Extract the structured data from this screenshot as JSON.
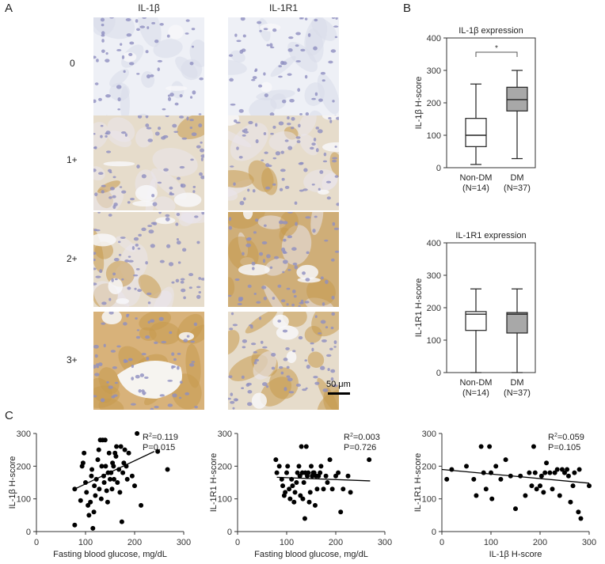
{
  "panels": {
    "a": "A",
    "b": "B",
    "c": "C"
  },
  "panel_a": {
    "col_headers": [
      "IL-1β",
      "IL-1R1"
    ],
    "row_labels": [
      "0",
      "1+",
      "2+",
      "3+"
    ],
    "scale_bar": "50 μm",
    "stain_colors": {
      "hematoxylin": "#8f8fc0",
      "dab": "#c79a4e",
      "background": "#eef0f6"
    }
  },
  "chart_data": [
    {
      "type": "box",
      "title": "IL-1β expression",
      "ylabel": "IL-1β H-score",
      "ylim": [
        0,
        400
      ],
      "yticks": [
        0,
        100,
        200,
        300,
        400
      ],
      "categories": [
        "Non-DM",
        "DM"
      ],
      "category_n": [
        "(N=14)",
        "(N=37)"
      ],
      "boxes": [
        {
          "min": 10,
          "q1": 65,
          "median": 100,
          "q3": 152,
          "max": 258,
          "fill": "#ffffff"
        },
        {
          "min": 28,
          "q1": 175,
          "median": 210,
          "q3": 248,
          "max": 300,
          "fill": "#a8a8a8"
        }
      ],
      "significance": "*"
    },
    {
      "type": "box",
      "title": "IL-1R1 expression",
      "ylabel": "IL-1R1 H-score",
      "ylim": [
        0,
        400
      ],
      "yticks": [
        0,
        100,
        200,
        300,
        400
      ],
      "categories": [
        "Non-DM",
        "DM"
      ],
      "category_n": [
        "(N=14)",
        "(N=37)"
      ],
      "boxes": [
        {
          "min": 0,
          "q1": 130,
          "median": 180,
          "q3": 188,
          "max": 258,
          "fill": "#ffffff"
        },
        {
          "min": 0,
          "q1": 122,
          "median": 180,
          "q3": 185,
          "max": 258,
          "fill": "#a8a8a8"
        }
      ]
    },
    {
      "type": "scatter",
      "xlabel": "Fasting blood glucose, mg/dL",
      "ylabel": "IL-1β H-score",
      "xlim": [
        0,
        300
      ],
      "ylim": [
        0,
        300
      ],
      "xticks": [
        0,
        100,
        200,
        300
      ],
      "yticks": [
        0,
        100,
        200,
        300
      ],
      "stats": {
        "r2_label": "R",
        "r2_sup": "2",
        "r2_value": "=0.119",
        "p": "P=0.015"
      },
      "fit": {
        "x": [
          75,
          240
        ],
        "y": [
          128,
          245
        ]
      },
      "points": [
        [
          78,
          20
        ],
        [
          78,
          130
        ],
        [
          90,
          95
        ],
        [
          93,
          200
        ],
        [
          95,
          210
        ],
        [
          97,
          240
        ],
        [
          100,
          150
        ],
        [
          102,
          120
        ],
        [
          105,
          80
        ],
        [
          107,
          50
        ],
        [
          110,
          90
        ],
        [
          112,
          170
        ],
        [
          113,
          190
        ],
        [
          115,
          10
        ],
        [
          117,
          60
        ],
        [
          118,
          140
        ],
        [
          120,
          110
        ],
        [
          122,
          160
        ],
        [
          125,
          220
        ],
        [
          127,
          250
        ],
        [
          128,
          130
        ],
        [
          130,
          280
        ],
        [
          132,
          100
        ],
        [
          133,
          200
        ],
        [
          135,
          280
        ],
        [
          137,
          170
        ],
        [
          138,
          150
        ],
        [
          140,
          280
        ],
        [
          141,
          200
        ],
        [
          143,
          125
        ],
        [
          145,
          90
        ],
        [
          146,
          180
        ],
        [
          148,
          240
        ],
        [
          150,
          160
        ],
        [
          152,
          180
        ],
        [
          154,
          130
        ],
        [
          155,
          210
        ],
        [
          157,
          200
        ],
        [
          158,
          160
        ],
        [
          160,
          240
        ],
        [
          162,
          230
        ],
        [
          163,
          260
        ],
        [
          165,
          150
        ],
        [
          168,
          190
        ],
        [
          170,
          120
        ],
        [
          172,
          260
        ],
        [
          174,
          30
        ],
        [
          176,
          180
        ],
        [
          178,
          210
        ],
        [
          180,
          250
        ],
        [
          183,
          200
        ],
        [
          185,
          160
        ],
        [
          188,
          240
        ],
        [
          195,
          170
        ],
        [
          200,
          140
        ],
        [
          205,
          300
        ],
        [
          213,
          80
        ],
        [
          247,
          245
        ],
        [
          267,
          190
        ]
      ]
    },
    {
      "type": "scatter",
      "xlabel": "Fasting blood glucose, mg/dL",
      "ylabel": "IL-1R1 H-score",
      "xlim": [
        0,
        300
      ],
      "ylim": [
        0,
        300
      ],
      "xticks": [
        0,
        100,
        200,
        300
      ],
      "yticks": [
        0,
        100,
        200,
        300
      ],
      "stats": {
        "r2_label": "R",
        "r2_sup": "2",
        "r2_value": "=0.003",
        "p": "P=0.726"
      },
      "fit": {
        "x": [
          80,
          270
        ],
        "y": [
          166,
          155
        ]
      },
      "points": [
        [
          78,
          220
        ],
        [
          80,
          180
        ],
        [
          85,
          200
        ],
        [
          90,
          160
        ],
        [
          92,
          140
        ],
        [
          95,
          110
        ],
        [
          97,
          120
        ],
        [
          100,
          180
        ],
        [
          102,
          200
        ],
        [
          105,
          130
        ],
        [
          107,
          100
        ],
        [
          110,
          160
        ],
        [
          112,
          140
        ],
        [
          115,
          90
        ],
        [
          117,
          120
        ],
        [
          120,
          150
        ],
        [
          122,
          180
        ],
        [
          125,
          200
        ],
        [
          127,
          170
        ],
        [
          128,
          110
        ],
        [
          130,
          260
        ],
        [
          132,
          180
        ],
        [
          133,
          100
        ],
        [
          135,
          150
        ],
        [
          137,
          40
        ],
        [
          138,
          180
        ],
        [
          140,
          260
        ],
        [
          142,
          170
        ],
        [
          144,
          180
        ],
        [
          146,
          90
        ],
        [
          148,
          120
        ],
        [
          150,
          200
        ],
        [
          152,
          170
        ],
        [
          154,
          180
        ],
        [
          156,
          180
        ],
        [
          158,
          80
        ],
        [
          160,
          170
        ],
        [
          162,
          130
        ],
        [
          165,
          170
        ],
        [
          168,
          180
        ],
        [
          170,
          200
        ],
        [
          175,
          130
        ],
        [
          180,
          170
        ],
        [
          183,
          150
        ],
        [
          188,
          220
        ],
        [
          193,
          130
        ],
        [
          200,
          170
        ],
        [
          205,
          180
        ],
        [
          210,
          60
        ],
        [
          215,
          130
        ],
        [
          225,
          170
        ],
        [
          230,
          120
        ],
        [
          268,
          220
        ]
      ]
    },
    {
      "type": "scatter",
      "xlabel": "IL-1β H-score",
      "ylabel": "IL-1R1 H-score",
      "xlim": [
        0,
        300
      ],
      "ylim": [
        0,
        300
      ],
      "xticks": [
        0,
        100,
        200,
        300
      ],
      "yticks": [
        0,
        100,
        200,
        300
      ],
      "stats": {
        "r2_label": "R",
        "r2_sup": "2",
        "r2_value": "=0.059",
        "p": "P=0.105"
      },
      "fit": {
        "x": [
          0,
          300
        ],
        "y": [
          190,
          148
        ]
      },
      "points": [
        [
          10,
          160
        ],
        [
          20,
          190
        ],
        [
          50,
          200
        ],
        [
          65,
          160
        ],
        [
          70,
          110
        ],
        [
          80,
          260
        ],
        [
          85,
          180
        ],
        [
          90,
          130
        ],
        [
          97,
          260
        ],
        [
          100,
          180
        ],
        [
          102,
          100
        ],
        [
          110,
          200
        ],
        [
          120,
          160
        ],
        [
          130,
          220
        ],
        [
          140,
          170
        ],
        [
          150,
          70
        ],
        [
          160,
          170
        ],
        [
          170,
          110
        ],
        [
          178,
          180
        ],
        [
          183,
          140
        ],
        [
          187,
          260
        ],
        [
          190,
          180
        ],
        [
          193,
          130
        ],
        [
          200,
          140
        ],
        [
          203,
          170
        ],
        [
          207,
          120
        ],
        [
          210,
          180
        ],
        [
          213,
          210
        ],
        [
          220,
          180
        ],
        [
          225,
          130
        ],
        [
          230,
          180
        ],
        [
          235,
          190
        ],
        [
          240,
          110
        ],
        [
          245,
          190
        ],
        [
          250,
          180
        ],
        [
          255,
          190
        ],
        [
          258,
          170
        ],
        [
          262,
          90
        ],
        [
          267,
          140
        ],
        [
          270,
          180
        ],
        [
          278,
          60
        ],
        [
          280,
          190
        ],
        [
          283,
          40
        ],
        [
          300,
          140
        ]
      ]
    }
  ]
}
